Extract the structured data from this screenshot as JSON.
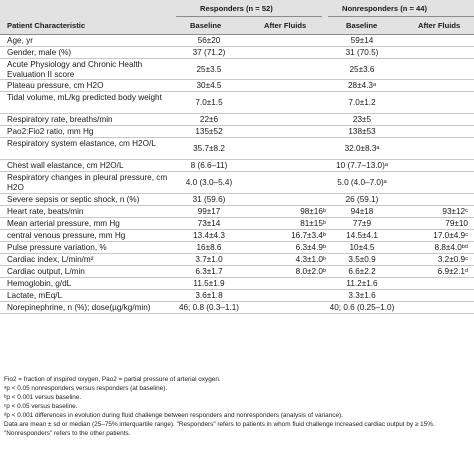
{
  "header": {
    "patient_characteristic": "Patient Characteristic",
    "responders": "Responders (n = 52)",
    "nonresponders": "Nonresponders (n = 44)",
    "baseline": "Baseline",
    "after_fluids": "After Fluids"
  },
  "rows": [
    {
      "label": "Age, yr",
      "r_base": "56±20",
      "r_after": "",
      "n_base": "59±14",
      "n_after": ""
    },
    {
      "label": "Gender, male (%)",
      "r_base": "37 (71.2)",
      "r_after": "",
      "n_base": "31 (70.5)",
      "n_after": ""
    },
    {
      "label": "Acute Physiology and Chronic Health Evaluation II score",
      "r_base": "25±3.5",
      "r_after": "",
      "n_base": "25±3.6",
      "n_after": ""
    },
    {
      "label": "Plateau pressure, cm H2O",
      "r_base": "30±4.5",
      "r_after": "",
      "n_base": "28±4.3ᵃ",
      "n_after": ""
    },
    {
      "label": "Tidal volume, mL/kg predicted body weight",
      "r_base": "7.0±1.5",
      "r_after": "",
      "n_base": "7.0±1.2",
      "n_after": ""
    },
    {
      "label": "Respiratory rate, breaths/min",
      "r_base": "22±6",
      "r_after": "",
      "n_base": "23±5",
      "n_after": ""
    },
    {
      "label": "Pao2:Fio2 ratio, mm Hg",
      "r_base": "135±52",
      "r_after": "",
      "n_base": "138±53",
      "n_after": ""
    },
    {
      "label": "Respiratory system elastance, cm H2O/L",
      "r_base": "35.7±8.2",
      "r_after": "",
      "n_base": "32.0±8.3ᵃ",
      "n_after": ""
    },
    {
      "label": "Chest wall elastance, cm H2O/L",
      "r_base": "8 (6.6–11)",
      "r_after": "",
      "n_base": "10 (7.7–13.0)ᵃ",
      "n_after": ""
    },
    {
      "label": "Respiratory changes in pleural pressure, cm H2O",
      "r_base": "4.0 (3.0–5.4)",
      "r_after": "",
      "n_base": "5.0 (4.0–7.0)ᵃ",
      "n_after": ""
    },
    {
      "label": "Severe sepsis or septic shock, n (%)",
      "r_base": "31 (59.6)",
      "r_after": "",
      "n_base": "26 (59.1)",
      "n_after": ""
    },
    {
      "label": "Heart rate, beats/min",
      "r_base": "99±17",
      "r_after": "98±16ᵇ",
      "n_base": "94±18",
      "n_after": "93±12ᶜ"
    },
    {
      "label": "Mean arterial pressure, mm Hg",
      "r_base": "73±14",
      "r_after": "81±15ᵇ",
      "n_base": "77±9",
      "n_after": "79±10"
    },
    {
      "label": "central venous pressure, mm Hg",
      "r_base": "13.4±4.3",
      "r_after": "16.7±3.4ᵇ",
      "n_base": "14.5±4.1",
      "n_after": "17.0±4.9ᶜ"
    },
    {
      "label": "Pulse pressure variation, %",
      "r_base": "16±8.6",
      "r_after": "6.3±4.9ᵇ",
      "n_base": "10±4.5",
      "n_after": "8.8±4.0ᵇᵈ"
    },
    {
      "label": "Cardiac index, L/min/m²",
      "r_base": "3.7±1.0",
      "r_after": "4.3±1.0ᵇ",
      "n_base": "3.5±0.9",
      "n_after": "3.2±0.9ᶜ"
    },
    {
      "label": "Cardiac output, L/min",
      "r_base": "6.3±1.7",
      "r_after": "8.0±2.0ᵇ",
      "n_base": "6.6±2.2",
      "n_after": "6.9±2.1ᵈ"
    },
    {
      "label": "Hemoglobin, g/dL",
      "r_base": "11.5±1.9",
      "r_after": "",
      "n_base": "11.2±1.6",
      "n_after": ""
    },
    {
      "label": "Lactate, mEq/L",
      "r_base": "3.6±1.8",
      "r_after": "",
      "n_base": "3.3±1.6",
      "n_after": ""
    },
    {
      "label": "Norepinephrine, n (%); dose(µg/kg/min)",
      "r_base": "46; 0.8 (0.3–1.1)",
      "r_after": "",
      "n_base": "40; 0.6 (0.25–1.0)",
      "n_after": ""
    }
  ],
  "footnotes": [
    "Fio2 = fraction of inspired oxygen, Pao2 = partial pressure of arterial oxygen.",
    "ᵃp < 0.05 nonresponders versus responders (at baseline).",
    "ᵇp < 0.001 versus baseline.",
    "ᶜp < 0.05 versus baseline.",
    "ᵈp < 0.001 differences in evolution during fluid challenge between responders and nonresponders (analysis of variance).",
    "Data are mean ± sd or median (25–75% interquartile range). \"Responders\" refers to patients in whom fluid challenge increased cardiac output by ≥ 15%.",
    "\"Nonresponders\" refers to the other patients."
  ]
}
